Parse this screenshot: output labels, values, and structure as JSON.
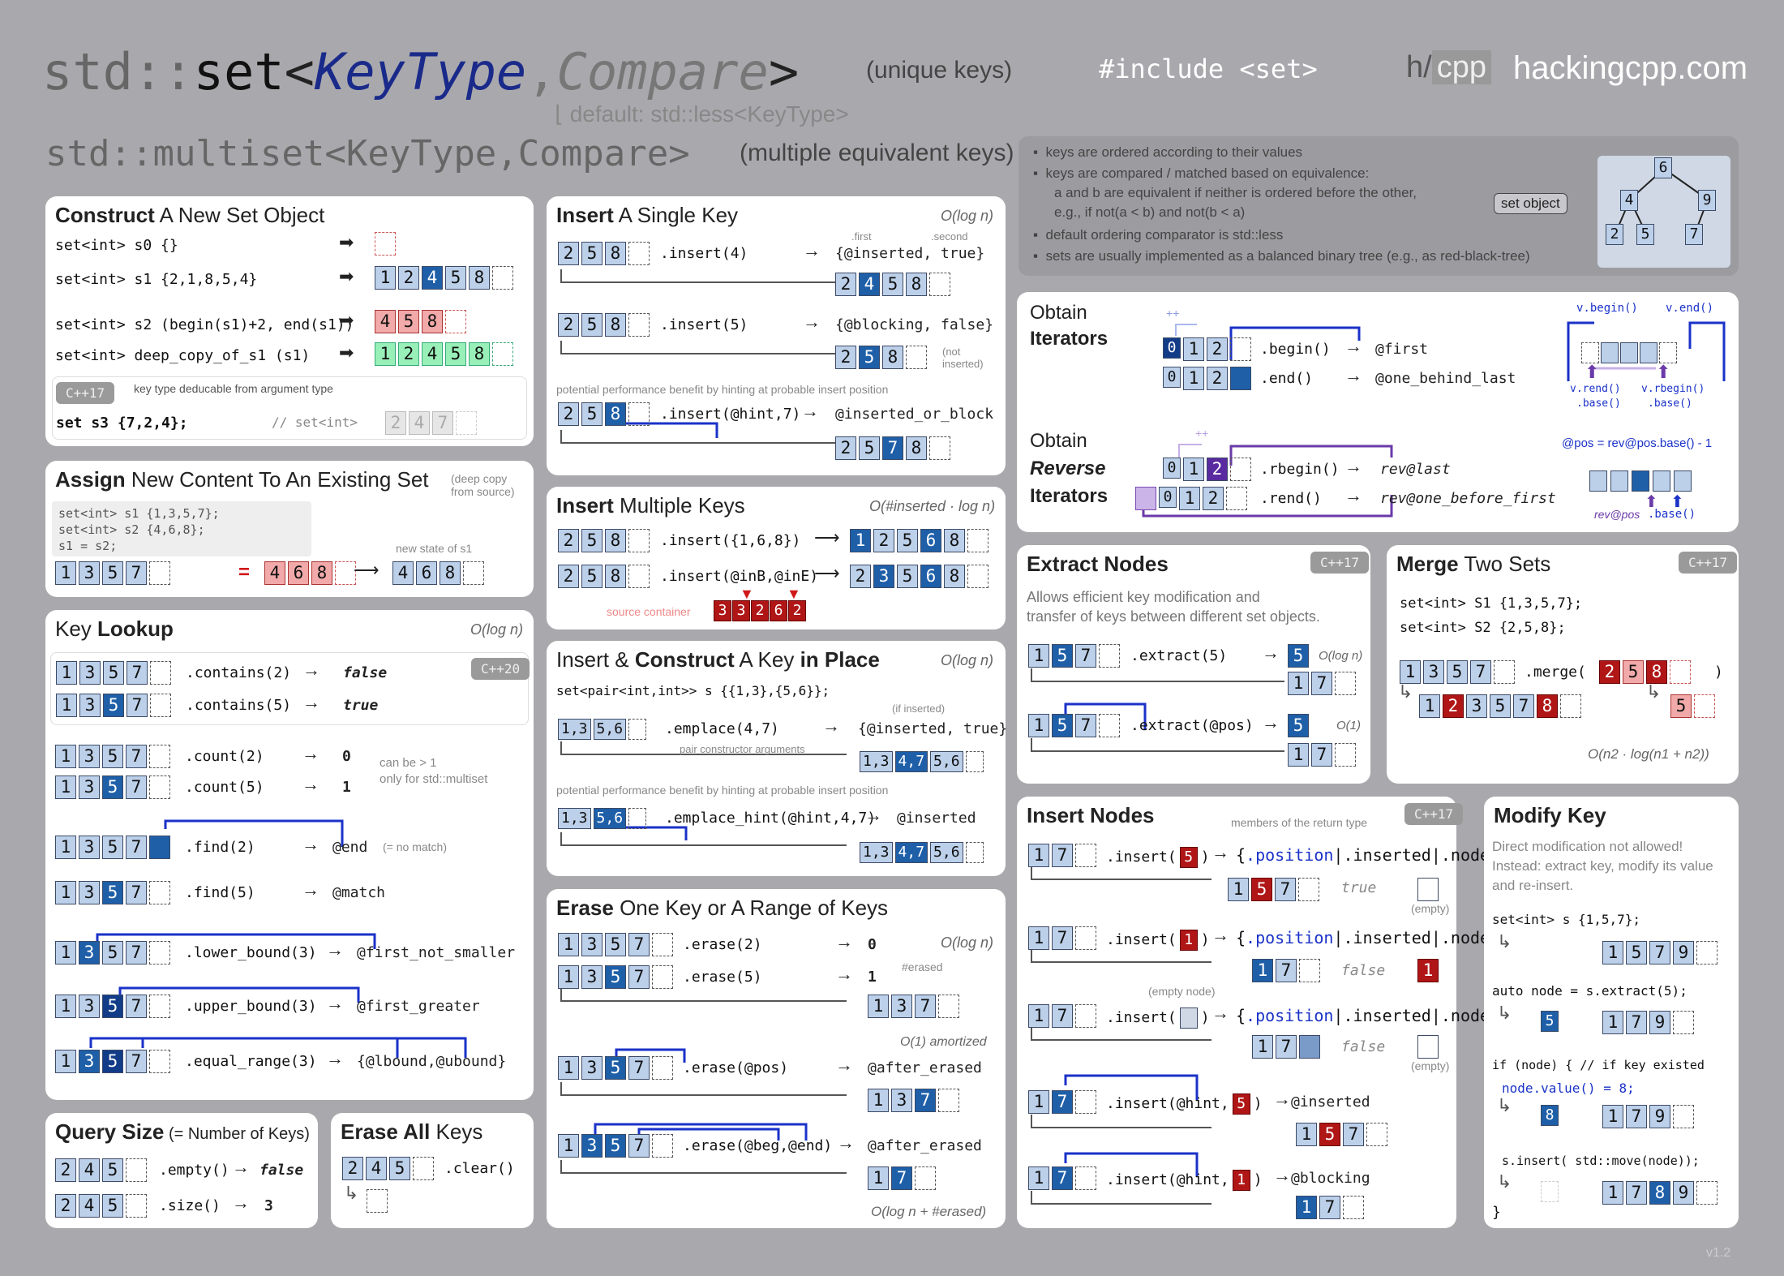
{
  "header": {
    "std": "std::",
    "set": "set",
    "lt": "<",
    "keytype": "KeyType",
    "comma": ",",
    "compare": "Compare",
    "gt": ">",
    "unique": "(unique keys)",
    "include": "#include <set>",
    "logo_h": "h/",
    "logo_cpp": "cpp",
    "site": "hackingcpp.com",
    "default_label": "default:",
    "default_val": "std::less<KeyType>",
    "multiset": "std::multiset<KeyType,Compare>",
    "multiple": "(multiple equivalent keys)"
  },
  "info": {
    "b1": "keys are ordered according to their values",
    "b2": "keys are compared / matched based on equivalence:",
    "b3": "a and b are equivalent if neither is ordered before the other,",
    "b4": "e.g., if not(a < b) and not(b < a)",
    "b5": "default ordering comparator is std::less",
    "b6": "sets are usually implemented as a balanced binary tree (e.g., as red-black-tree)",
    "set_object": "set object",
    "tree": [
      "6",
      "4",
      "9",
      "2",
      "5",
      "7"
    ]
  },
  "construct": {
    "title_b": "Construct",
    "title_r": " A New Set Object",
    "l0": "set<int> s0 {}",
    "l1": "set<int> s1 {2,1,8,5,4}",
    "l2": "set<int> s2 (begin(s1)+2, end(s1))",
    "l3": "set<int> deep_copy_of_s1 (s1)",
    "cpp17": "C++17",
    "deduce": "key type deducable from argument type",
    "l4": "set      s3  {7,2,4};",
    "l4c": "// set<int>",
    "r1": [
      "1",
      "2",
      "4",
      "5",
      "8"
    ],
    "r2": [
      "4",
      "5",
      "8"
    ],
    "r3": [
      "1",
      "2",
      "4",
      "5",
      "8"
    ],
    "r4": [
      "2",
      "4",
      "7"
    ]
  },
  "assign": {
    "title_b": "Assign",
    "title_r": " New Content To An Existing Set",
    "note": "(deep copy from source)",
    "c1": "set<int> s1 {1,3,5,7};",
    "c2": "set<int> s2 {4,6,8};",
    "c3": "s1        =    s2;",
    "state": "new state of s1",
    "a": [
      "1",
      "3",
      "5",
      "7"
    ],
    "eq": "=",
    "b": [
      "4",
      "6",
      "8"
    ],
    "r": [
      "4",
      "6",
      "8"
    ]
  },
  "lookup": {
    "title_r": "Key ",
    "title_b": "Lookup",
    "cx": "O(log n)",
    "cpp20": "C++20",
    "contains2": ".contains(2)",
    "contains5": ".contains(5)",
    "false": "false",
    "true": "true",
    "count2": ".count(2)",
    "count5": ".count(5)",
    "zero": "0",
    "one": "1",
    "canbe": "can be > 1",
    "only": "only for std::multiset",
    "find2": ".find(2)",
    "find5": ".find(5)",
    "end": "@end",
    "nomatch": "(= no match)",
    "match": "@match",
    "lb": ".lower_bound(3)",
    "lbr": "@first_not_smaller",
    "ub": ".upper_bound(3)",
    "ubr": "@first_greater",
    "er": ".equal_range(3)",
    "err": "{@lbound,@ubound}",
    "keys": [
      "1",
      "3",
      "5",
      "7"
    ]
  },
  "size": {
    "title_b": "Query Size",
    "title_r": "  (= Number of Keys)",
    "empty": ".empty()",
    "false": "false",
    "sz": ".size()",
    "three": "3",
    "keys": [
      "2",
      "4",
      "5"
    ]
  },
  "clear": {
    "title_b": "Erase All",
    "title_r": " Keys",
    "clr": ".clear()",
    "keys": [
      "2",
      "4",
      "5"
    ]
  },
  "insert": {
    "title_b": "Insert",
    "title_r": " A Single Key",
    "cx": "O(log n)",
    "i4": ".insert(4)",
    "r4": "{@inserted, true}",
    "first": ".first",
    "second": ".second",
    "i5": ".insert(5)",
    "r5": "{@blocking, false}",
    "notins": "(not inserted)",
    "hint_note": "potential performance benefit by hinting at probable insert position",
    "ih": ".insert(@hint,7)",
    "rh": "@inserted_or_block"
  },
  "imulti": {
    "title_b1": "Insert",
    "title_r": " Multiple Keys",
    "cx": "O(#inserted · log n)",
    "i1": ".insert({1,6,8})",
    "i2": ".insert(@inB,@inE)",
    "src": "source container",
    "srckeys": [
      "3",
      "3",
      "2",
      "6",
      "2"
    ]
  },
  "emplace": {
    "t1": "Insert & ",
    "t2": "Construct",
    "t3": " A Key ",
    "t4": "in Place",
    "cx": "O(log n)",
    "decl": "set<pair<int,int>> s {{1,3},{5,6}};",
    "e1": ".emplace(4,7)",
    "ifins": "(if inserted)",
    "r1": "{@inserted, true}",
    "pca": "pair constructor arguments",
    "hint_note": "potential performance benefit by hinting at probable insert position",
    "e2": ".emplace_hint(@hint,4,7)",
    "r2": "@inserted",
    "k1": "1,3",
    "k2": "5,6",
    "k3": "4,7"
  },
  "erase": {
    "title_b": "Erase",
    "title_r": " One Key or A Range of Keys",
    "cx": "O(log n)",
    "e2": ".erase(2)",
    "e5": ".erase(5)",
    "zero": "0",
    "one": "1",
    "erased": "#erased",
    "ep": ".erase(@pos)",
    "amort": "O(1) amortized",
    "ae": "@after_erased",
    "er": ".erase(@beg,@end)",
    "ae2": "@after_erased",
    "cx2": "O(log n + #erased)"
  },
  "iter": {
    "t1": "Obtain",
    "t2": "Iterators",
    "begin": ".begin()",
    "first": "@first",
    "end": ".end()",
    "obl": "@one_behind_last",
    "rt1": "Obtain",
    "rt2": "Reverse",
    "rt3": "Iterators",
    "rbegin": ".rbegin()",
    "rlast": "rev@last",
    "rend": ".rend()",
    "rof": "rev@one_before_first",
    "vb": "v.begin()",
    "ve": "v.end()",
    "vrend": "v.rend()",
    "base": ".base()",
    "vrbegin": "v.rbegin()",
    "formula": "@pos = rev@pos.base() - 1",
    "revpos": "rev@pos",
    "baseb": ".base()",
    "pp": "++",
    "keys": [
      "0",
      "1",
      "2"
    ]
  },
  "extract": {
    "title_b": "Extract Nodes",
    "cpp17": "C++17",
    "desc1": "Allows efficient key modification and",
    "desc2": "transfer of keys between different set objects.",
    "x5": ".extract(5)",
    "cx1": "O(log n)",
    "xp": ".extract(@pos)",
    "cx2": "O(1)",
    "five": "5"
  },
  "merge": {
    "title_b": "Merge",
    "title_r": " Two Sets",
    "cpp17": "C++17",
    "c1": "set<int> S1 {1,3,5,7};",
    "c2": "set<int> S2 {2,5,8};",
    "m": ".merge(",
    "close": ")",
    "cx": "O(n2 · log(n1 + n2))"
  },
  "inodes": {
    "title_b": "Insert Nodes",
    "cpp17": "C++17",
    "members": "members of the return type",
    "i5": ".insert(",
    "pos": ".position",
    "ins": ".inserted",
    "node": ".node",
    "true": "true",
    "false": "false",
    "empty": "(empty)",
    "emptynode": "(empty node)",
    "ih5": ".insert(@hint,",
    "rins": "@inserted",
    "ih1": ".insert(@hint,",
    "rblk": "@blocking"
  },
  "modify": {
    "title_b": "Modify Key",
    "d1": "Direct modification not allowed!",
    "d2": "Instead: extract key, modify its value",
    "d3": "and re-insert.",
    "c1": "set<int> s {1,5,7};",
    "c2": "auto node = s.extract(5);",
    "c3": "if (node) {  // if key existed",
    "c4": "node.value() = 8;",
    "c5": "s.insert( std::move(node));",
    "c6": "}"
  },
  "version": "v1.2"
}
